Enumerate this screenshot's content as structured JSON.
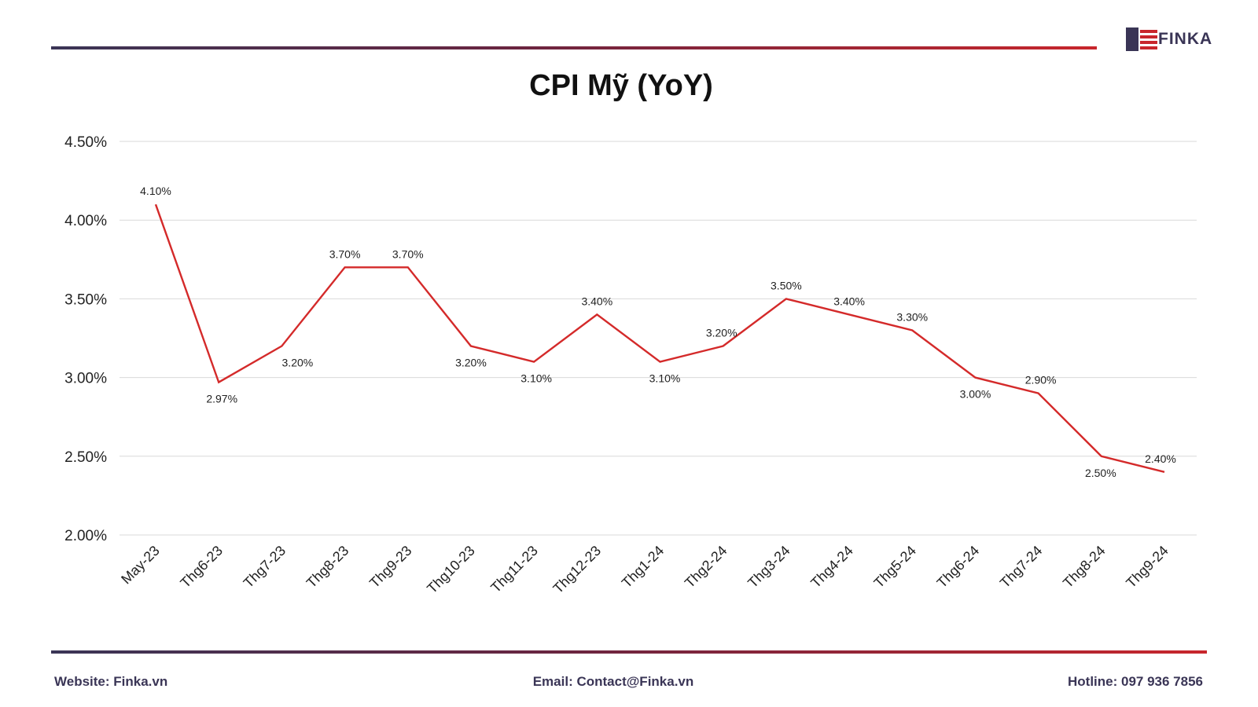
{
  "brand": {
    "logo_text": "FINKA",
    "colors": {
      "navy": "#3a3556",
      "red": "#c8262c"
    }
  },
  "chart_data": {
    "type": "line",
    "title": "CPI Mỹ (YoY)",
    "xlabel": "",
    "ylabel": "",
    "categories": [
      "May-23",
      "Thg6-23",
      "Thg7-23",
      "Thg8-23",
      "Thg9-23",
      "Thg10-23",
      "Thg11-23",
      "Thg12-23",
      "Thg1-24",
      "Thg2-24",
      "Thg3-24",
      "Thg4-24",
      "Thg5-24",
      "Thg6-24",
      "Thg7-24",
      "Thg8-24",
      "Thg9-24"
    ],
    "series": [
      {
        "values": [
          4.1,
          2.97,
          3.2,
          3.7,
          3.7,
          3.2,
          3.1,
          3.4,
          3.1,
          3.2,
          3.5,
          3.4,
          3.3,
          3.0,
          2.9,
          2.5,
          2.4
        ],
        "labels": [
          "4.10%",
          "2.97%",
          "3.20%",
          "3.70%",
          "3.70%",
          "3.20%",
          "3.10%",
          "3.40%",
          "3.10%",
          "3.20%",
          "3.50%",
          "3.40%",
          "3.30%",
          "3.00%",
          "2.90%",
          "2.50%",
          "2.40%"
        ],
        "color": "#d42a2a"
      }
    ],
    "ylim": [
      2.0,
      4.5
    ],
    "yticks": [
      "2.00%",
      "2.50%",
      "3.00%",
      "3.50%",
      "4.00%",
      "4.50%"
    ],
    "grid": true,
    "legend": "none"
  },
  "footer": {
    "website": "Website: Finka.vn",
    "email": "Email: Contact@Finka.vn",
    "hotline": "Hotline: 097 936 7856"
  }
}
